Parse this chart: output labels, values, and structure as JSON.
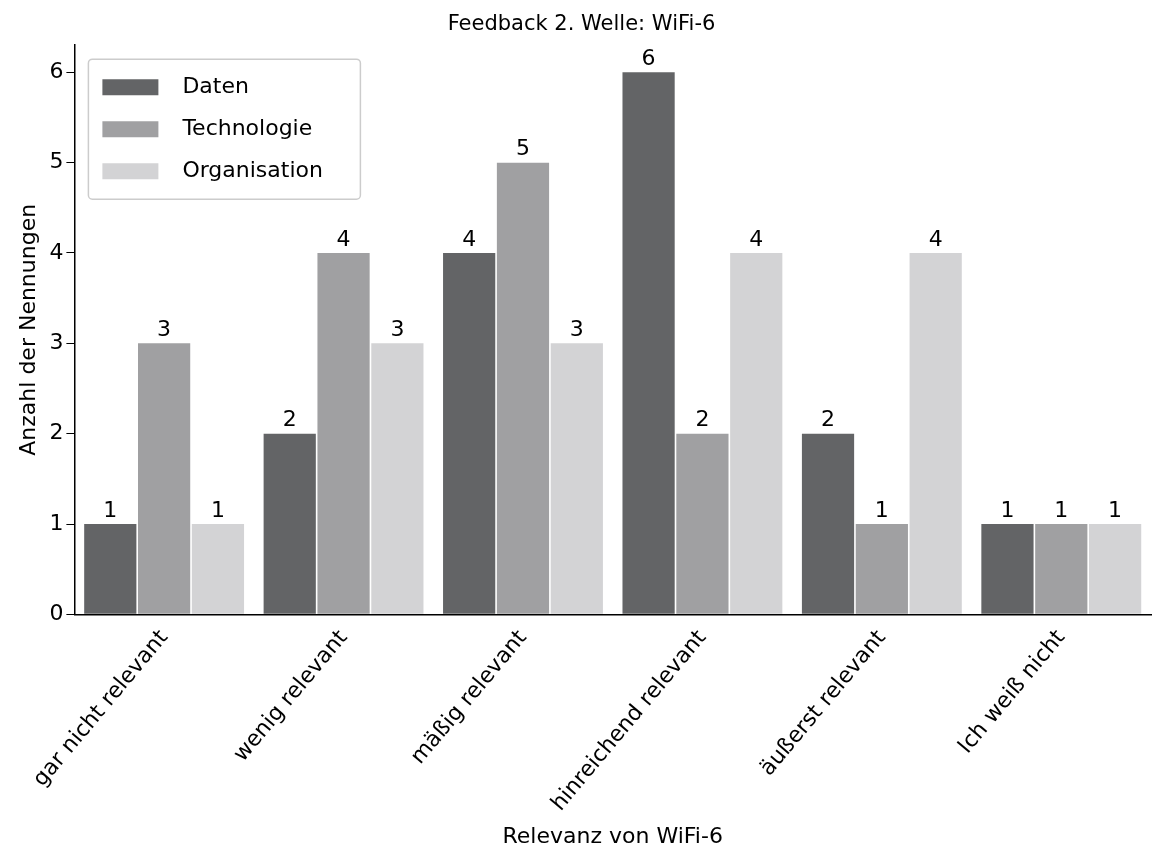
{
  "chart_data": {
    "type": "bar",
    "title": "Feedback 2. Welle: WiFi-6",
    "xlabel": "Relevanz von WiFi-6",
    "ylabel": "Anzahl der Nennungen",
    "categories": [
      "gar nicht relevant",
      "wenig relevant",
      "mäßig relevant",
      "hinreichend relevant",
      "äußerst relevant",
      "Ich weiß nicht"
    ],
    "series": [
      {
        "name": "Daten",
        "color": "#636466",
        "values": [
          1,
          2,
          4,
          6,
          2,
          1
        ]
      },
      {
        "name": "Technologie",
        "color": "#a0a0a2",
        "values": [
          3,
          4,
          5,
          2,
          1,
          1
        ]
      },
      {
        "name": "Organisation",
        "color": "#d3d3d5",
        "values": [
          1,
          3,
          3,
          4,
          4,
          1
        ]
      }
    ],
    "ylim": [
      0,
      6.3
    ],
    "yticks": [
      0,
      1,
      2,
      3,
      4,
      5,
      6
    ],
    "data_labels": true,
    "legend": "top left",
    "grid": false
  }
}
